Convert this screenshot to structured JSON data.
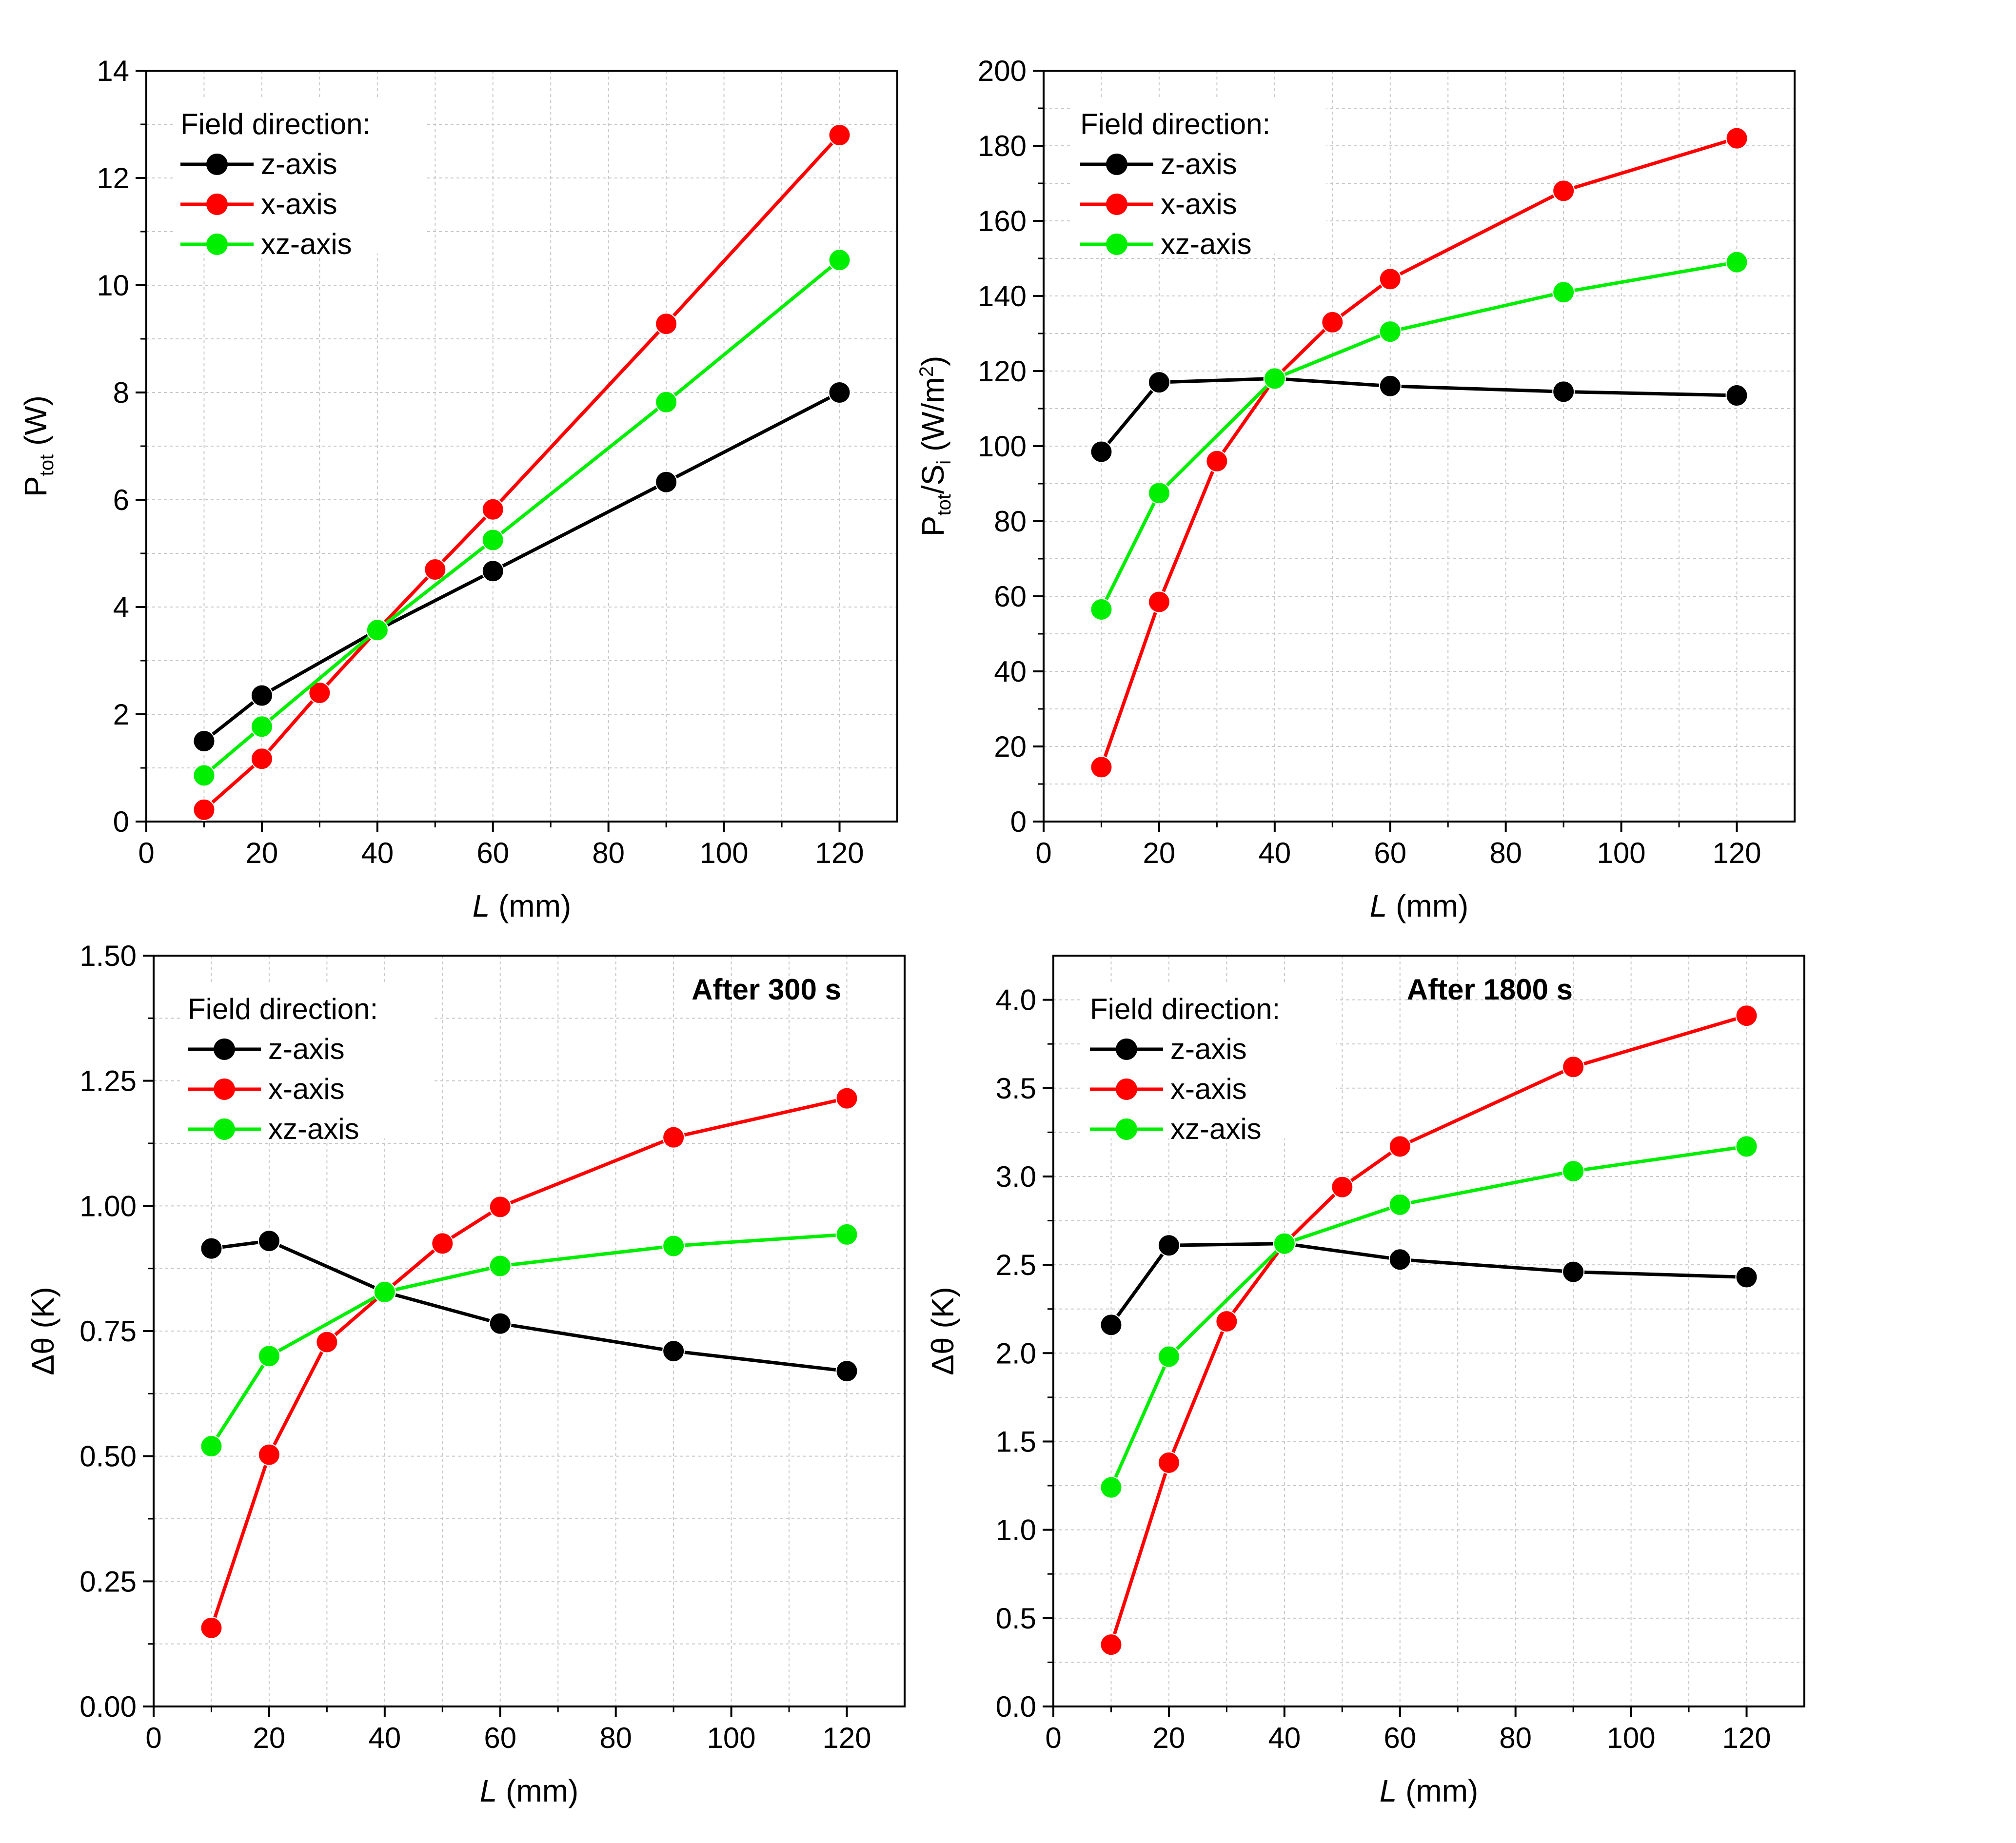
{
  "chart_data": [
    {
      "id": "p1",
      "type": "line",
      "title": "",
      "annotation": "",
      "xlabel_var": "L",
      "xlabel_unit": " (mm)",
      "ylabel": "P_tot (W)",
      "ylabel_main": "P",
      "ylabel_sub": "tot",
      "ylabel_rest": " (W)",
      "xlim": [
        0,
        130
      ],
      "ylim": [
        0,
        14
      ],
      "xticks": [
        "0",
        "20",
        "40",
        "60",
        "80",
        "100",
        "120"
      ],
      "yticks": [
        "0",
        "2",
        "4",
        "6",
        "8",
        "10",
        "12",
        "14"
      ],
      "legend_title": "Field direction:",
      "legend_position": "top-left",
      "grid": true,
      "series": [
        {
          "name": "z-axis",
          "color": "#000000",
          "x": [
            10,
            20,
            40,
            60,
            90,
            120
          ],
          "y": [
            1.5,
            2.35,
            3.57,
            4.67,
            6.33,
            8.0
          ]
        },
        {
          "name": "x-axis",
          "color": "#ff0000",
          "x": [
            10,
            20,
            30,
            40,
            50,
            60,
            90,
            120
          ],
          "y": [
            0.22,
            1.17,
            2.4,
            3.57,
            4.7,
            5.82,
            9.28,
            12.8
          ]
        },
        {
          "name": "xz-axis",
          "color": "#00ee00",
          "x": [
            10,
            20,
            40,
            60,
            90,
            120
          ],
          "y": [
            0.86,
            1.77,
            3.57,
            5.25,
            7.82,
            10.47
          ]
        }
      ]
    },
    {
      "id": "p2",
      "type": "line",
      "title": "",
      "annotation": "",
      "xlabel_var": "L",
      "xlabel_unit": " (mm)",
      "ylabel": "P_tot/S_i (W/m^2)",
      "ylabel_main": "P",
      "ylabel_sub": "tot",
      "ylabel_mid": "/S",
      "ylabel_sub2": "i",
      "ylabel_rest": " (W/m",
      "ylabel_sup": "2",
      "ylabel_end": ")",
      "xlim": [
        0,
        130
      ],
      "ylim": [
        0,
        200
      ],
      "xticks": [
        "0",
        "20",
        "40",
        "60",
        "80",
        "100",
        "120"
      ],
      "yticks": [
        "0",
        "20",
        "40",
        "60",
        "80",
        "100",
        "120",
        "140",
        "160",
        "180",
        "200"
      ],
      "legend_title": "Field direction:",
      "legend_position": "top-left",
      "grid": true,
      "series": [
        {
          "name": "z-axis",
          "color": "#000000",
          "x": [
            10,
            20,
            40,
            60,
            90,
            120
          ],
          "y": [
            98.5,
            117,
            118,
            116,
            114.5,
            113.5
          ]
        },
        {
          "name": "x-axis",
          "color": "#ff0000",
          "x": [
            10,
            20,
            30,
            40,
            50,
            60,
            90,
            120
          ],
          "y": [
            14.5,
            58.5,
            96,
            118,
            133,
            144.5,
            168,
            182
          ]
        },
        {
          "name": "xz-axis",
          "color": "#00ee00",
          "x": [
            10,
            20,
            40,
            60,
            90,
            120
          ],
          "y": [
            56.5,
            87.5,
            118,
            130.5,
            141,
            149
          ]
        }
      ]
    },
    {
      "id": "p3",
      "type": "line",
      "title": "",
      "annotation": "After 300 s",
      "xlabel_var": "L",
      "xlabel_unit": " (mm)",
      "ylabel": "Δθ (K)",
      "ylabel_main": "Δθ (K)",
      "xlim": [
        0,
        130
      ],
      "ylim": [
        0,
        1.5
      ],
      "xticks": [
        "0",
        "20",
        "40",
        "60",
        "80",
        "100",
        "120"
      ],
      "yticks": [
        "0.00",
        "0.25",
        "0.50",
        "0.75",
        "1.00",
        "1.25",
        "1.50"
      ],
      "legend_title": "Field direction:",
      "legend_position": "top-left",
      "grid": true,
      "series": [
        {
          "name": "z-axis",
          "color": "#000000",
          "x": [
            10,
            20,
            40,
            60,
            90,
            120
          ],
          "y": [
            0.915,
            0.93,
            0.828,
            0.765,
            0.71,
            0.67
          ]
        },
        {
          "name": "x-axis",
          "color": "#ff0000",
          "x": [
            10,
            20,
            30,
            40,
            50,
            60,
            90,
            120
          ],
          "y": [
            0.157,
            0.503,
            0.728,
            0.828,
            0.925,
            0.998,
            1.137,
            1.215
          ]
        },
        {
          "name": "xz-axis",
          "color": "#00ee00",
          "x": [
            10,
            20,
            40,
            60,
            90,
            120
          ],
          "y": [
            0.52,
            0.7,
            0.828,
            0.88,
            0.92,
            0.943
          ]
        }
      ]
    },
    {
      "id": "p4",
      "type": "line",
      "title": "",
      "annotation": "After 1800 s",
      "xlabel_var": "L",
      "xlabel_unit": " (mm)",
      "ylabel": "Δθ (K)",
      "ylabel_main": "Δθ (K)",
      "xlim": [
        0,
        130
      ],
      "ylim": [
        0,
        4.25
      ],
      "xticks": [
        "0",
        "20",
        "40",
        "60",
        "80",
        "100",
        "120"
      ],
      "yticks": [
        "0.0",
        "0.5",
        "1.0",
        "1.5",
        "2.0",
        "2.5",
        "3.0",
        "3.5",
        "4.0"
      ],
      "legend_title": "Field direction:",
      "legend_position": "top-left",
      "grid": true,
      "series": [
        {
          "name": "z-axis",
          "color": "#000000",
          "x": [
            10,
            20,
            40,
            60,
            90,
            120
          ],
          "y": [
            2.16,
            2.61,
            2.62,
            2.53,
            2.46,
            2.43
          ]
        },
        {
          "name": "x-axis",
          "color": "#ff0000",
          "x": [
            10,
            20,
            30,
            40,
            50,
            60,
            90,
            120
          ],
          "y": [
            0.35,
            1.38,
            2.18,
            2.62,
            2.94,
            3.17,
            3.62,
            3.91
          ]
        },
        {
          "name": "xz-axis",
          "color": "#00ee00",
          "x": [
            10,
            20,
            40,
            60,
            90,
            120
          ],
          "y": [
            1.24,
            1.98,
            2.62,
            2.84,
            3.03,
            3.17
          ]
        }
      ]
    }
  ]
}
